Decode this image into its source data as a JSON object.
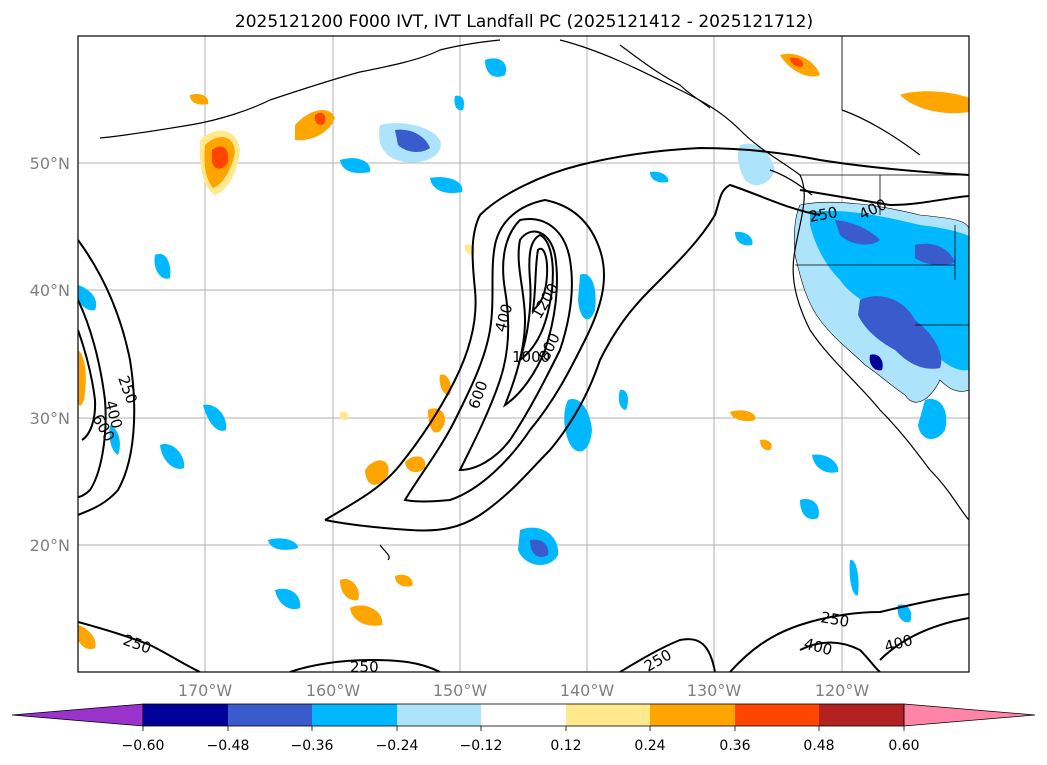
{
  "title": "2025121200 F000 IVT, IVT Landfall PC (2025121412 - 2025121712)",
  "lat_labels": [
    "50°N",
    "40°N",
    "30°N",
    "20°N"
  ],
  "lon_labels": [
    "170°W",
    "160°W",
    "150°W",
    "140°W",
    "130°W",
    "120°W"
  ],
  "colorbar": {
    "ticks": [
      "−0.60",
      "−0.48",
      "−0.36",
      "−0.24",
      "−0.12",
      "0.12",
      "0.24",
      "0.36",
      "0.48",
      "0.60"
    ],
    "colors": [
      "#9933cc",
      "#000099",
      "#3a5bcc",
      "#00b8ff",
      "#aee4fb",
      "#ffffff",
      "#ffe98c",
      "#ffa500",
      "#ff4500",
      "#b22222",
      "#ff85a8"
    ]
  },
  "contour_labels": {
    "c250_a": "250",
    "c400_a": "400",
    "c250_b": "250",
    "c400_b": "400",
    "c600_a": "600",
    "c600_b": "600",
    "c400_c": "400",
    "c1200": "1200",
    "c1000": "1000",
    "c800": "800",
    "c250_c": "250",
    "c400_d": "400",
    "c250_d": "250",
    "c400_e": "400",
    "c250_e": "250",
    "c250_f": "250"
  }
}
